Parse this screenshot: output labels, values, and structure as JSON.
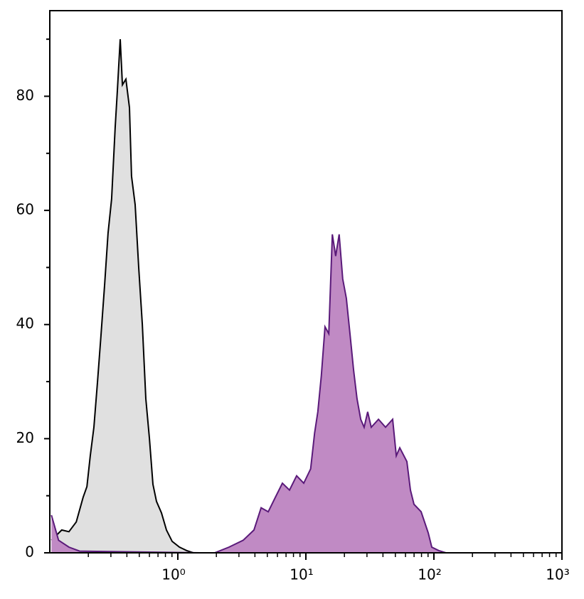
{
  "chart_data": {
    "type": "histogram-overlay",
    "xscale": "log",
    "xlim": [
      0.1,
      1000
    ],
    "ylim": [
      0,
      95
    ],
    "xticks": [
      {
        "value": 1,
        "label": "10⁰"
      },
      {
        "value": 10,
        "label": "10¹"
      },
      {
        "value": 100,
        "label": "10²"
      },
      {
        "value": 1000,
        "label": "10³"
      }
    ],
    "xminorticks": [
      0.2,
      0.3,
      0.4,
      0.5,
      0.6,
      0.7,
      0.8,
      0.9,
      2,
      3,
      4,
      5,
      6,
      7,
      8,
      9,
      20,
      30,
      40,
      50,
      60,
      70,
      80,
      90,
      200,
      300,
      400,
      500,
      600,
      700,
      800,
      900
    ],
    "yticks": [
      0,
      20,
      40,
      60,
      80
    ],
    "yminorticks": [
      10,
      30,
      50,
      70,
      90
    ],
    "series": [
      {
        "color": "#000000",
        "fill": "#e0e0e0",
        "x": [
          0.103,
          0.124,
          0.141,
          0.161,
          0.182,
          0.195,
          0.207,
          0.221,
          0.236,
          0.251,
          0.268,
          0.285,
          0.304,
          0.324,
          0.337,
          0.355,
          0.369,
          0.393,
          0.419,
          0.435,
          0.464,
          0.495,
          0.528,
          0.562,
          0.6,
          0.639,
          0.681,
          0.745,
          0.815,
          0.903,
          1.03,
          1.17,
          1.32
        ],
        "values": [
          2.2,
          4,
          3.7,
          5.4,
          9.7,
          11.6,
          17,
          22,
          30,
          38,
          47,
          56,
          62,
          74.5,
          81,
          90,
          82,
          83,
          78,
          66,
          61,
          50,
          40,
          27,
          20,
          12,
          9,
          7,
          4,
          2,
          1,
          0.4,
          0
        ]
      },
      {
        "color": "#5a1a7a",
        "fill": "#c08ac4",
        "x": [
          0.103,
          0.117,
          0.141,
          0.171,
          1.51,
          1.94,
          2.51,
          3.24,
          3.93,
          4.47,
          5.08,
          5.77,
          6.56,
          7.45,
          8.47,
          9.62,
          10.9,
          11.7,
          12.4,
          13.2,
          14.1,
          15.1,
          16.1,
          17.1,
          18.2,
          19.4,
          20.7,
          22.1,
          23.6,
          25.1,
          26.8,
          28.5,
          30.4,
          32.4,
          36.9,
          41.9,
          47.6,
          50.8,
          54.1,
          61.5,
          65.6,
          69.9,
          79.4,
          90.3,
          96.2,
          109,
          124
        ],
        "values": [
          6.6,
          2.2,
          1,
          0.3,
          0,
          0,
          1,
          2.2,
          4,
          7.9,
          7.2,
          9.7,
          12.2,
          11,
          13.5,
          12.2,
          14.7,
          21,
          24.7,
          31,
          39.6,
          38.4,
          55.8,
          52,
          55.8,
          48,
          44.6,
          38.4,
          32,
          27,
          23.4,
          22,
          24.7,
          22,
          23.4,
          22,
          23.4,
          17,
          18.4,
          16,
          11,
          8.5,
          7.2,
          3.5,
          1,
          0.4,
          0
        ]
      }
    ]
  }
}
